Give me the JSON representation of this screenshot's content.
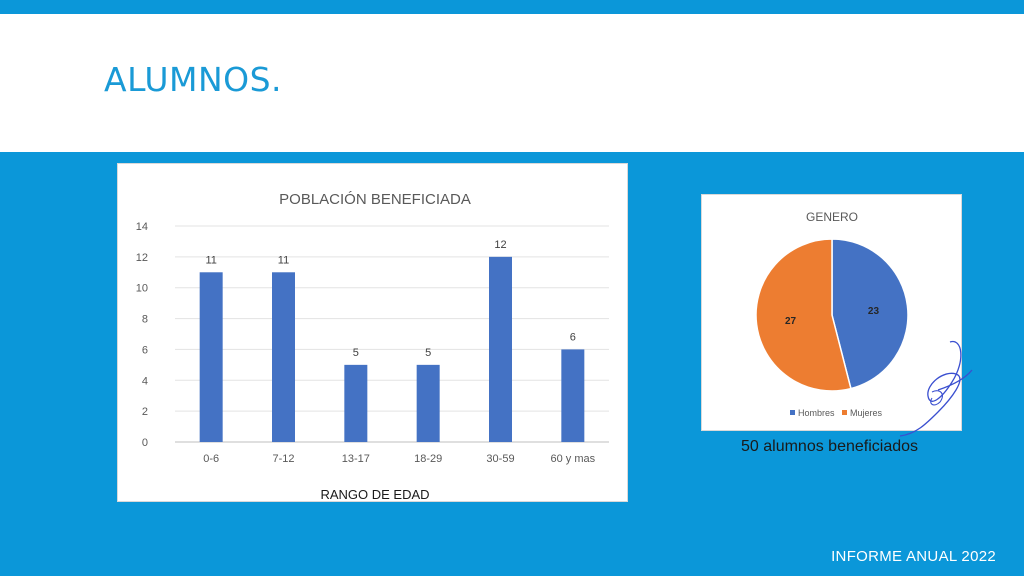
{
  "slide": {
    "title": "ALUMNOS.",
    "caption": "50 alumnos beneficiados",
    "footer": "INFORME ANUAL 2022"
  },
  "colors": {
    "background": "#0b97d9",
    "title": "#1a9ad6",
    "bar": "#4472c4",
    "hombres": "#4472c4",
    "mujeres": "#ed7d31"
  },
  "chart_data": [
    {
      "type": "bar",
      "title": "POBLACIÓN BENEFICIADA",
      "xlabel": "RANGO DE EDAD",
      "ylabel": "",
      "categories": [
        "0-6",
        "7-12",
        "13-17",
        "18-29",
        "30-59",
        "60 y mas"
      ],
      "values": [
        11,
        11,
        5,
        5,
        12,
        6
      ],
      "ylim": [
        0,
        14
      ],
      "yticks": [
        0,
        2,
        4,
        6,
        8,
        10,
        12,
        14
      ],
      "grid": true,
      "data_labels": true
    },
    {
      "type": "pie",
      "title": "GENERO",
      "labels": [
        "Hombres",
        "Mujeres"
      ],
      "values": [
        23,
        27
      ],
      "legend": "bottom",
      "data_labels": true
    }
  ]
}
